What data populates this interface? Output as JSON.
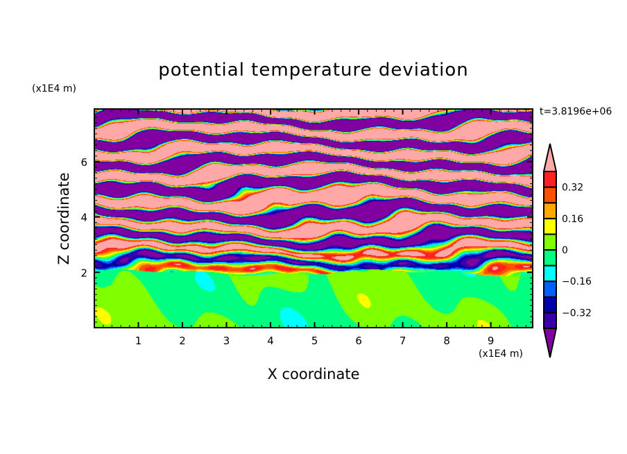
{
  "chart_data": {
    "type": "heatmap",
    "title": "potential temperature deviation",
    "xlabel": "X coordinate",
    "ylabel": "Z coordinate",
    "x_unit": "(x1E4 m)",
    "y_unit": "(x1E4 m)",
    "time_label": "t=3.8196e+06",
    "xlim": [
      0,
      9.95
    ],
    "ylim": [
      0,
      7.9
    ],
    "x_ticks": [
      1,
      2,
      3,
      4,
      5,
      6,
      7,
      8,
      9
    ],
    "y_ticks": [
      2,
      4,
      6
    ],
    "x_tick_labels": [
      "1",
      "2",
      "3",
      "4",
      "5",
      "6",
      "7",
      "8",
      "9"
    ],
    "y_tick_labels": [
      "2",
      "4",
      "6"
    ],
    "levels": [
      -0.4,
      -0.32,
      -0.24,
      -0.16,
      -0.08,
      0,
      0.08,
      0.16,
      0.24,
      0.32,
      0.4
    ],
    "colorbar_labels": [
      {
        "value": 0.32,
        "text": "0.32"
      },
      {
        "value": 0.16,
        "text": "0.16"
      },
      {
        "value": 0,
        "text": "0"
      },
      {
        "value": -0.16,
        "text": "-0.16"
      },
      {
        "value": -0.32,
        "text": "-0.32"
      }
    ],
    "colors": [
      "#8000a0",
      "#3800a8",
      "#0000a8",
      "#0060ff",
      "#00ffff",
      "#00ff80",
      "#80ff00",
      "#ffff00",
      "#ffa800",
      "#ff5000",
      "#ff2020",
      "#ffa8a8"
    ],
    "field_description_bands": "stably layered bands above z≈2, near-neutral green layer below"
  }
}
